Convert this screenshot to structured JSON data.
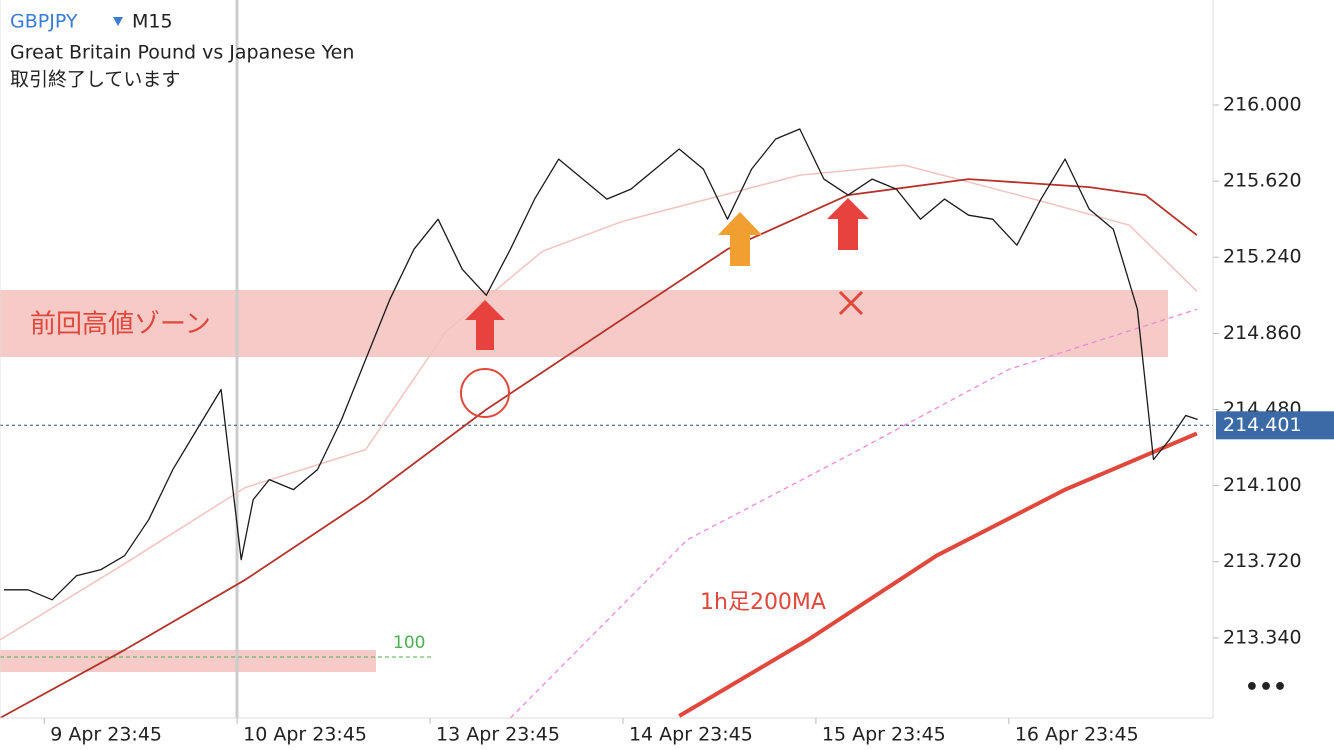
{
  "header": {
    "symbol": "GBPJPY",
    "timeframe": "M15",
    "description": "Great Britain Pound vs Japanese Yen",
    "status": "取引終了しています"
  },
  "chart_data": {
    "type": "line",
    "xlim": [
      -5.5,
      145.4
    ],
    "ylim": [
      212.94,
      216.524
    ],
    "xticks": [
      {
        "value": 0,
        "label": "9 Apr 23:45"
      },
      {
        "value": 24,
        "label": "10 Apr 23:45"
      },
      {
        "value": 48,
        "label": "13 Apr 23:45"
      },
      {
        "value": 72,
        "label": "14 Apr 23:45"
      },
      {
        "value": 96,
        "label": "15 Apr 23:45"
      },
      {
        "value": 120,
        "label": "16 Apr 23:45"
      }
    ],
    "yticks": [
      {
        "value": 216,
        "label": "216.000"
      },
      {
        "value": 215.62,
        "label": "215.620"
      },
      {
        "value": 215.24,
        "label": "215.240"
      },
      {
        "value": 214.86,
        "label": "214.860"
      },
      {
        "value": 214.48,
        "label": "214.480"
      },
      {
        "value": 214.1,
        "label": "214.100"
      },
      {
        "value": 213.72,
        "label": "213.720"
      },
      {
        "value": 213.34,
        "label": "213.340"
      }
    ],
    "last_price": 214.401,
    "zone_label": "前回高値ゾーン",
    "ma_label": "1h足200MA",
    "level_label": "100",
    "series": [
      {
        "color": "#f2c4c0",
        "width": 1.5,
        "dash": false,
        "x": [
          -5.5,
          10,
          25,
          40,
          50,
          62,
          72,
          94,
          107,
          124,
          135,
          143.4
        ],
        "values": [
          213.33,
          213.71,
          214.09,
          214.28,
          214.87,
          215.27,
          215.42,
          215.65,
          215.7,
          215.52,
          215.4,
          215.07
        ]
      },
      {
        "color": "#ee88e0",
        "width": 1.3,
        "dash": true,
        "x": [
          58,
          80,
          100,
          120,
          143.4
        ],
        "values": [
          212.94,
          213.83,
          214.25,
          214.68,
          214.98
        ]
      },
      {
        "color": "#b5332b",
        "width": 1.8,
        "dash": false,
        "x": [
          -5.5,
          10,
          25,
          40,
          55,
          70,
          85,
          100,
          115,
          130,
          137,
          143.4
        ],
        "values": [
          212.94,
          213.28,
          213.63,
          214.03,
          214.48,
          214.88,
          215.28,
          215.55,
          215.63,
          215.59,
          215.55,
          215.35
        ]
      },
      {
        "color": "#e0483c",
        "width": 4,
        "dash": false,
        "x": [
          79,
          95,
          111,
          127,
          143.4
        ],
        "values": [
          212.95,
          213.33,
          213.75,
          214.08,
          214.36
        ]
      },
      {
        "color": "#1a1a1a",
        "width": 1.3,
        "dash": false,
        "x": [
          -5,
          -2,
          1,
          4,
          7,
          10,
          13,
          16,
          19,
          22,
          24.5,
          26,
          28,
          31,
          34,
          37,
          40,
          43,
          46,
          49,
          52,
          55,
          58,
          61,
          64,
          67,
          70,
          73,
          76,
          79,
          82,
          85,
          88,
          91,
          94,
          97,
          100,
          103,
          106,
          109,
          112,
          115,
          118,
          121,
          124,
          127,
          130,
          133,
          136,
          138,
          140,
          142,
          143.5
        ],
        "values": [
          213.58,
          213.58,
          213.53,
          213.65,
          213.68,
          213.75,
          213.93,
          214.18,
          214.38,
          214.58,
          213.73,
          214.03,
          214.13,
          214.08,
          214.18,
          214.43,
          214.73,
          215.03,
          215.28,
          215.43,
          215.18,
          215.05,
          215.28,
          215.53,
          215.73,
          215.63,
          215.53,
          215.58,
          215.68,
          215.78,
          215.68,
          215.43,
          215.68,
          215.83,
          215.88,
          215.63,
          215.55,
          215.63,
          215.58,
          215.43,
          215.53,
          215.45,
          215.43,
          215.3,
          215.53,
          215.73,
          215.48,
          215.38,
          214.98,
          214.23,
          214.33,
          214.45,
          214.43
        ]
      }
    ]
  }
}
